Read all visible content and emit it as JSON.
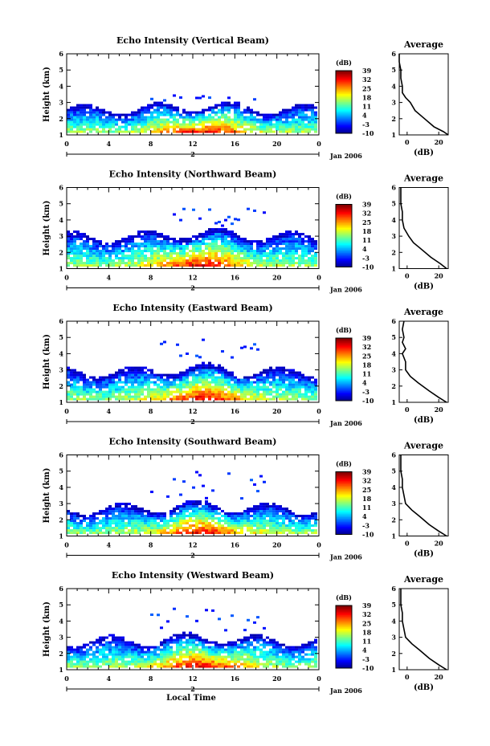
{
  "chart_data": {
    "type": "heatmap",
    "x_label": "Local Time",
    "date_label": "Jan 2006",
    "day_marker": "2",
    "x_ticks": [
      "0",
      "4",
      "8",
      "12",
      "16",
      "20",
      "0"
    ],
    "x_range_hours": [
      0,
      24
    ],
    "y_label": "Height (km)",
    "y_range_km": [
      1,
      6
    ],
    "y_ticks": [
      "1",
      "2",
      "3",
      "4",
      "5",
      "6"
    ],
    "colorbar": {
      "unit_label": "(dB)",
      "ticks": [
        "39",
        "32",
        "25",
        "18",
        "11",
        "4",
        "-3",
        "-10"
      ],
      "range_db": [
        -10,
        39
      ]
    },
    "average_profile": {
      "title": "Average",
      "x_label": "(dB)",
      "x_ticks": [
        "0",
        "20"
      ],
      "x_range_db": [
        -5,
        26
      ]
    },
    "panels": [
      {
        "title": "Echo Intensity (Vertical Beam)",
        "cloud_top_km": 2.5,
        "upper_layer_km": [
          3.0,
          3.4
        ],
        "profile": [
          [
            1.0,
            26
          ],
          [
            1.2,
            23
          ],
          [
            1.5,
            17
          ],
          [
            2.0,
            11
          ],
          [
            2.5,
            5
          ],
          [
            3.0,
            2
          ],
          [
            3.3,
            -1
          ],
          [
            3.6,
            -3
          ],
          [
            4.0,
            -3
          ],
          [
            4.5,
            -4
          ],
          [
            5.0,
            -4
          ],
          [
            5.5,
            -5
          ],
          [
            6.0,
            -5
          ]
        ]
      },
      {
        "title": "Echo Intensity (Northward Beam)",
        "cloud_top_km": 2.9,
        "upper_layer_km": [
          3.5,
          4.7
        ],
        "profile": [
          [
            1.0,
            25
          ],
          [
            1.3,
            21
          ],
          [
            1.7,
            15
          ],
          [
            2.2,
            9
          ],
          [
            2.6,
            4
          ],
          [
            3.0,
            1
          ],
          [
            3.5,
            -2
          ],
          [
            4.0,
            -3
          ],
          [
            4.5,
            -3
          ],
          [
            5.0,
            -4
          ],
          [
            5.5,
            -4
          ],
          [
            6.0,
            -4
          ]
        ]
      },
      {
        "title": "Echo Intensity (Eastward Beam)",
        "cloud_top_km": 2.8,
        "upper_layer_km": [
          3.6,
          4.8
        ],
        "profile": [
          [
            1.0,
            25
          ],
          [
            1.3,
            20
          ],
          [
            1.7,
            14
          ],
          [
            2.2,
            7
          ],
          [
            2.6,
            2
          ],
          [
            3.0,
            -1
          ],
          [
            3.5,
            -1
          ],
          [
            4.0,
            -3
          ],
          [
            4.3,
            -1
          ],
          [
            4.7,
            -3
          ],
          [
            5.0,
            -2
          ],
          [
            5.5,
            -3
          ],
          [
            6.0,
            -2
          ]
        ]
      },
      {
        "title": "Echo Intensity (Southward Beam)",
        "cloud_top_km": 2.6,
        "upper_layer_km": [
          3.2,
          4.9
        ],
        "profile": [
          [
            1.0,
            25
          ],
          [
            1.3,
            20
          ],
          [
            1.7,
            14
          ],
          [
            2.2,
            8
          ],
          [
            2.6,
            3
          ],
          [
            3.0,
            -1
          ],
          [
            3.5,
            -2
          ],
          [
            4.0,
            -3
          ],
          [
            4.5,
            -3
          ],
          [
            5.0,
            -4
          ],
          [
            5.5,
            -4
          ],
          [
            6.0,
            -4
          ]
        ]
      },
      {
        "title": "Echo Intensity (Westward Beam)",
        "cloud_top_km": 2.7,
        "upper_layer_km": [
          3.3,
          4.7
        ],
        "profile": [
          [
            1.0,
            25
          ],
          [
            1.3,
            20
          ],
          [
            1.7,
            14
          ],
          [
            2.2,
            8
          ],
          [
            2.6,
            3
          ],
          [
            3.0,
            -1
          ],
          [
            3.5,
            -2
          ],
          [
            4.0,
            -3
          ],
          [
            4.5,
            -3
          ],
          [
            5.0,
            -4
          ],
          [
            5.5,
            -4
          ],
          [
            6.0,
            -4
          ]
        ]
      }
    ]
  }
}
